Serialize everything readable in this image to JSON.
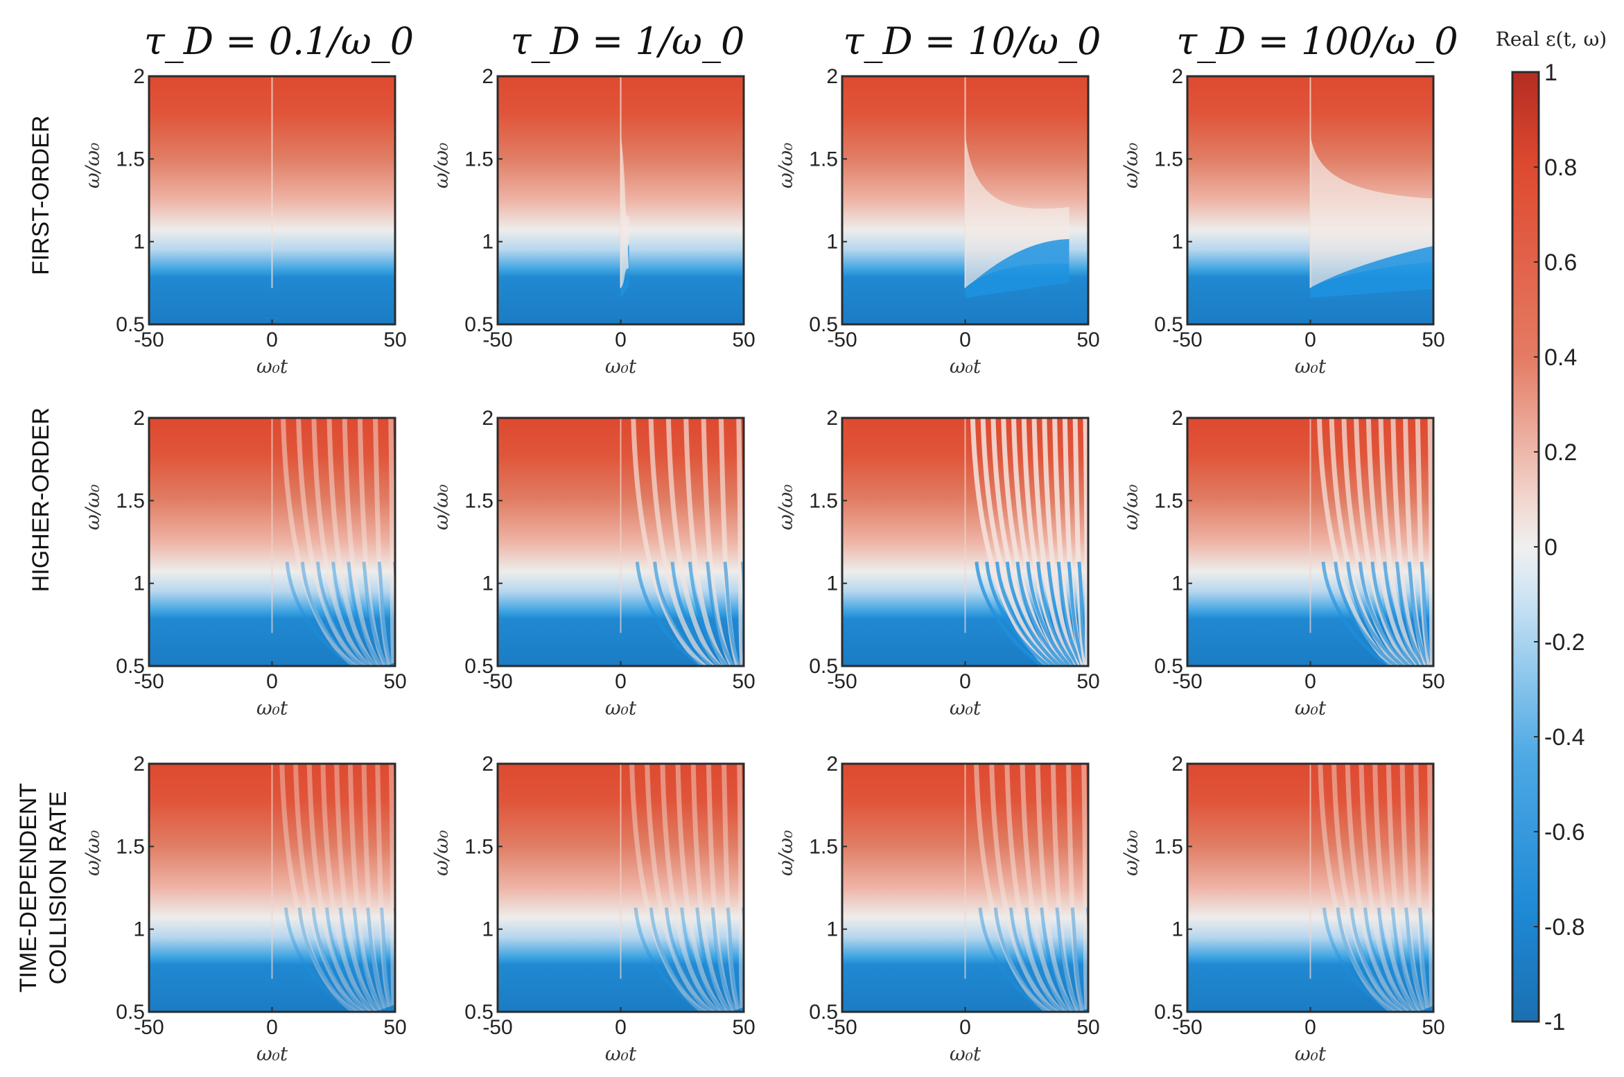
{
  "chart_data": {
    "type": "heatmap",
    "column_titles": [
      "τ_D = 0.1/ω_0",
      "τ_D = 1/ω_0",
      "τ_D = 10/ω_0",
      "τ_D = 100/ω_0"
    ],
    "row_labels": [
      [
        "FIRST-ORDER"
      ],
      [
        "HIGHER-ORDER"
      ],
      [
        "TIME-DEPENDENT",
        "COLLISION RATE"
      ]
    ],
    "xlabel": "ω₀t",
    "ylabel": "ω/ω₀",
    "xlim": [
      -50,
      50
    ],
    "ylim": [
      0.5,
      2
    ],
    "xticks": [
      "-50",
      "0",
      "50"
    ],
    "yticks": [
      "0.5",
      "1",
      "1.5",
      "2"
    ],
    "colorbar": {
      "title": "Real ε(t, ω)",
      "range": [
        -1,
        1
      ],
      "ticks": [
        "1",
        "0.8",
        "0.6",
        "0.4",
        "0.2",
        "0",
        "-0.2",
        "-0.4",
        "-0.6",
        "-0.8",
        "-1"
      ],
      "colors": [
        "#1f78c4",
        "#1e90de",
        "#eeeeee",
        "#e05a3e",
        "#c43a2b"
      ]
    }
  }
}
